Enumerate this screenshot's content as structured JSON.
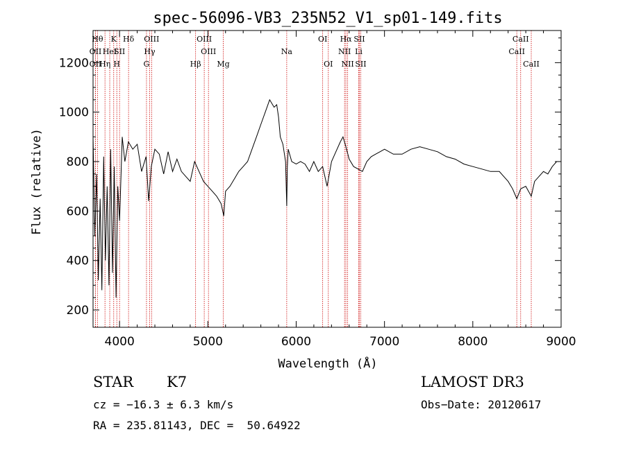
{
  "chart_data": {
    "type": "line",
    "title": "spec-56096-VB3_235N52_V1_sp01-149.fits",
    "xlabel": "Wavelength (Å)",
    "ylabel": "Flux (relative)",
    "xlim": [
      3700,
      9000
    ],
    "ylim": [
      130,
      1330
    ],
    "xticks": [
      4000,
      5000,
      6000,
      7000,
      8000,
      9000
    ],
    "yticks": [
      200,
      400,
      600,
      800,
      1000,
      1200
    ],
    "series": [
      {
        "name": "flux",
        "x": [
          3700,
          3720,
          3740,
          3760,
          3780,
          3800,
          3820,
          3840,
          3860,
          3880,
          3900,
          3920,
          3940,
          3960,
          3980,
          4000,
          4030,
          4060,
          4100,
          4150,
          4200,
          4250,
          4300,
          4330,
          4360,
          4400,
          4450,
          4500,
          4550,
          4600,
          4650,
          4700,
          4750,
          4800,
          4850,
          4900,
          4950,
          5000,
          5050,
          5100,
          5150,
          5180,
          5200,
          5250,
          5300,
          5350,
          5400,
          5450,
          5500,
          5550,
          5600,
          5650,
          5700,
          5750,
          5780,
          5800,
          5820,
          5850,
          5880,
          5893,
          5900,
          5910,
          5950,
          6000,
          6050,
          6100,
          6150,
          6200,
          6250,
          6300,
          6350,
          6400,
          6450,
          6500,
          6530,
          6563,
          6600,
          6650,
          6700,
          6750,
          6800,
          6850,
          6900,
          6950,
          7000,
          7100,
          7200,
          7300,
          7400,
          7500,
          7600,
          7700,
          7800,
          7900,
          8000,
          8100,
          8200,
          8300,
          8400,
          8450,
          8498,
          8542,
          8600,
          8662,
          8700,
          8750,
          8800,
          8850,
          8900,
          8950,
          9000
        ],
        "values": [
          900,
          500,
          750,
          320,
          650,
          280,
          820,
          400,
          700,
          300,
          850,
          350,
          780,
          250,
          700,
          560,
          900,
          800,
          880,
          850,
          870,
          760,
          820,
          640,
          780,
          850,
          830,
          750,
          840,
          760,
          810,
          760,
          740,
          720,
          800,
          760,
          720,
          700,
          680,
          660,
          630,
          580,
          680,
          700,
          730,
          760,
          780,
          800,
          850,
          900,
          950,
          1000,
          1050,
          1020,
          1030,
          980,
          900,
          870,
          800,
          620,
          780,
          850,
          800,
          790,
          800,
          790,
          760,
          800,
          760,
          780,
          700,
          800,
          840,
          880,
          900,
          860,
          810,
          780,
          770,
          760,
          800,
          820,
          830,
          840,
          850,
          830,
          830,
          850,
          860,
          850,
          840,
          820,
          810,
          790,
          780,
          770,
          760,
          760,
          720,
          690,
          650,
          690,
          700,
          660,
          720,
          740,
          760,
          750,
          780,
          800,
          800
        ]
      }
    ],
    "spectral_lines": [
      {
        "label": "OII",
        "wavelength": 3727,
        "row": 2
      },
      {
        "label": "OII",
        "wavelength": 3727,
        "row": 3
      },
      {
        "label": "Hθ",
        "wavelength": 3750,
        "row": 1
      },
      {
        "label": "Hη",
        "wavelength": 3835,
        "row": 3
      },
      {
        "label": "HeI",
        "wavelength": 3889,
        "row": 2
      },
      {
        "label": "K",
        "wavelength": 3934,
        "row": 1
      },
      {
        "label": "SII",
        "wavelength": 4000,
        "row": 2
      },
      {
        "label": "H",
        "wavelength": 3969,
        "row": 3
      },
      {
        "label": "Hδ",
        "wavelength": 4102,
        "row": 1
      },
      {
        "label": "OIII",
        "wavelength": 4363,
        "row": 1
      },
      {
        "label": "Hγ",
        "wavelength": 4341,
        "row": 2
      },
      {
        "label": "G",
        "wavelength": 4305,
        "row": 3
      },
      {
        "label": "Hβ",
        "wavelength": 4861,
        "row": 3
      },
      {
        "label": "OIII",
        "wavelength": 4959,
        "row": 1
      },
      {
        "label": "OIII",
        "wavelength": 5007,
        "row": 2
      },
      {
        "label": "Mg",
        "wavelength": 5175,
        "row": 3
      },
      {
        "label": "Na",
        "wavelength": 5893,
        "row": 2
      },
      {
        "label": "OI",
        "wavelength": 6300,
        "row": 1
      },
      {
        "label": "OI",
        "wavelength": 6364,
        "row": 3
      },
      {
        "label": "Hα",
        "wavelength": 6563,
        "row": 1
      },
      {
        "label": "NII",
        "wavelength": 6548,
        "row": 2
      },
      {
        "label": "NII",
        "wavelength": 6583,
        "row": 3
      },
      {
        "label": "SII",
        "wavelength": 6716,
        "row": 1
      },
      {
        "label": "Li",
        "wavelength": 6708,
        "row": 2
      },
      {
        "label": "SII",
        "wavelength": 6731,
        "row": 3
      },
      {
        "label": "CaII",
        "wavelength": 8542,
        "row": 1
      },
      {
        "label": "CaII",
        "wavelength": 8498,
        "row": 2
      },
      {
        "label": "CaII",
        "wavelength": 8662,
        "row": 3
      }
    ],
    "line_marker_color": "#cc0000"
  },
  "info": {
    "class": "STAR",
    "subclass": "K7",
    "survey": "LAMOST DR3",
    "cz": "cz = −16.3 ± 6.3 km/s",
    "obs_date": "Obs−Date: 20120617",
    "coords": "RA = 235.81143, DEC =  50.64922"
  }
}
